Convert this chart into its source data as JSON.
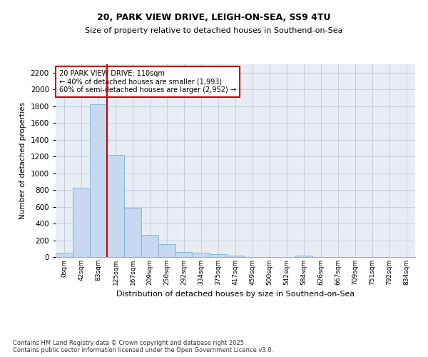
{
  "title1": "20, PARK VIEW DRIVE, LEIGH-ON-SEA, SS9 4TU",
  "title2": "Size of property relative to detached houses in Southend-on-Sea",
  "xlabel": "Distribution of detached houses by size in Southend-on-Sea",
  "ylabel": "Number of detached properties",
  "bar_labels": [
    "0sqm",
    "42sqm",
    "83sqm",
    "125sqm",
    "167sqm",
    "209sqm",
    "250sqm",
    "292sqm",
    "334sqm",
    "375sqm",
    "417sqm",
    "459sqm",
    "500sqm",
    "542sqm",
    "584sqm",
    "626sqm",
    "667sqm",
    "709sqm",
    "751sqm",
    "792sqm",
    "834sqm"
  ],
  "bar_values": [
    50,
    830,
    1820,
    1220,
    590,
    260,
    155,
    60,
    50,
    30,
    20,
    0,
    0,
    0,
    20,
    0,
    0,
    0,
    0,
    0,
    0
  ],
  "bar_color": "#c6d9f0",
  "bar_edge_color": "#7bafd4",
  "vline_color": "#cc0000",
  "ylim": [
    0,
    2300
  ],
  "yticks": [
    0,
    200,
    400,
    600,
    800,
    1000,
    1200,
    1400,
    1600,
    1800,
    2000,
    2200
  ],
  "annotation_title": "20 PARK VIEW DRIVE: 110sqm",
  "annotation_line1": "← 40% of detached houses are smaller (1,993)",
  "annotation_line2": "60% of semi-detached houses are larger (2,952) →",
  "annotation_box_color": "#ffffff",
  "annotation_box_edge": "#cc0000",
  "grid_color": "#c0c8d8",
  "bg_color": "#e8edf5",
  "footnote": "Contains HM Land Registry data © Crown copyright and database right 2025.\nContains public sector information licensed under the Open Government Licence v3.0."
}
